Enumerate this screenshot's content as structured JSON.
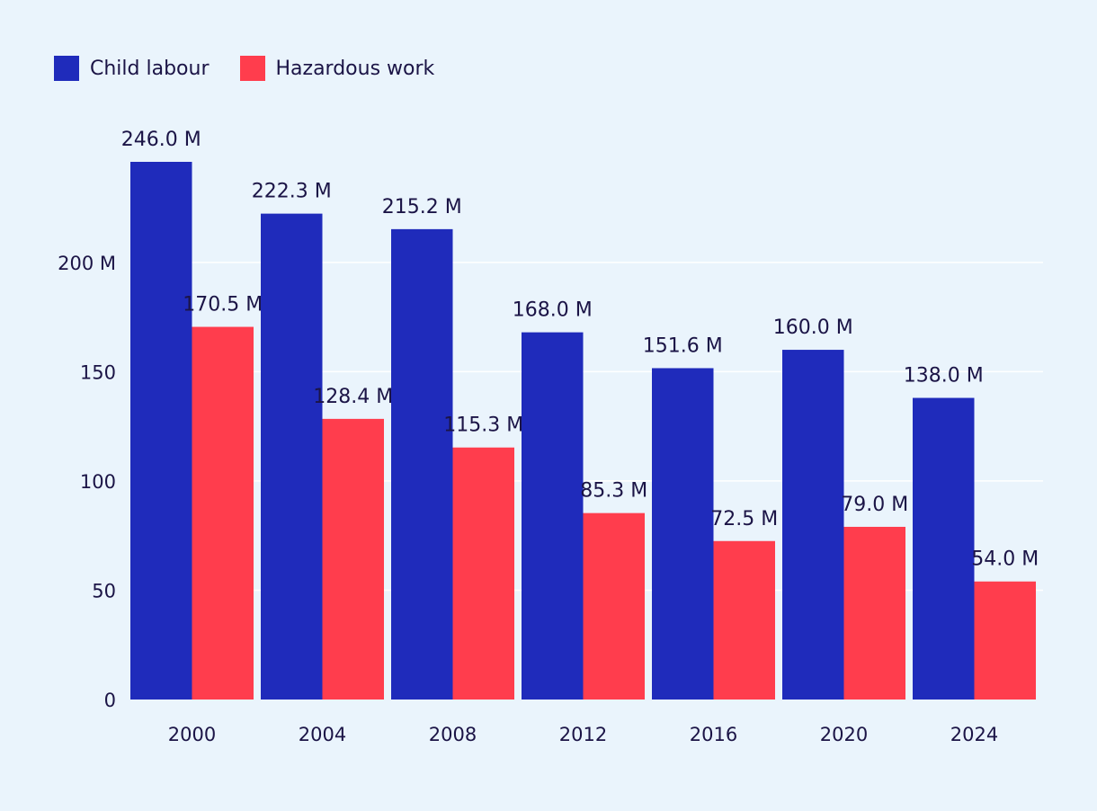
{
  "colors": {
    "background": "#eaf4fc",
    "grid": "#ffffff",
    "text": "#1b1446"
  },
  "chart_data": {
    "type": "bar",
    "categories": [
      "2000",
      "2004",
      "2008",
      "2012",
      "2016",
      "2020",
      "2024"
    ],
    "series": [
      {
        "name": "Child labour",
        "color": "#1f2bbb",
        "values": [
          246.0,
          222.3,
          215.2,
          168.0,
          151.6,
          160.0,
          138.0
        ],
        "labels": [
          "246.0 M",
          "222.3 M",
          "215.2 M",
          "168.0 M",
          "151.6 M",
          "160.0 M",
          "138.0 M"
        ]
      },
      {
        "name": "Hazardous work",
        "color": "#ff3d4d",
        "values": [
          170.5,
          128.4,
          115.3,
          85.3,
          72.5,
          79.0,
          54.0
        ],
        "labels": [
          "170.5 M",
          "128.4 M",
          "115.3 M",
          "85.3 M",
          "72.5 M",
          "79.0 M",
          "54.0 M"
        ]
      }
    ],
    "y_ticks": [
      0,
      50,
      100,
      150,
      200
    ],
    "y_tick_labels": [
      "0",
      "50",
      "100",
      "150",
      "200 M"
    ],
    "ylim": [
      0,
      246
    ],
    "grid": true,
    "legend": "top-left"
  }
}
